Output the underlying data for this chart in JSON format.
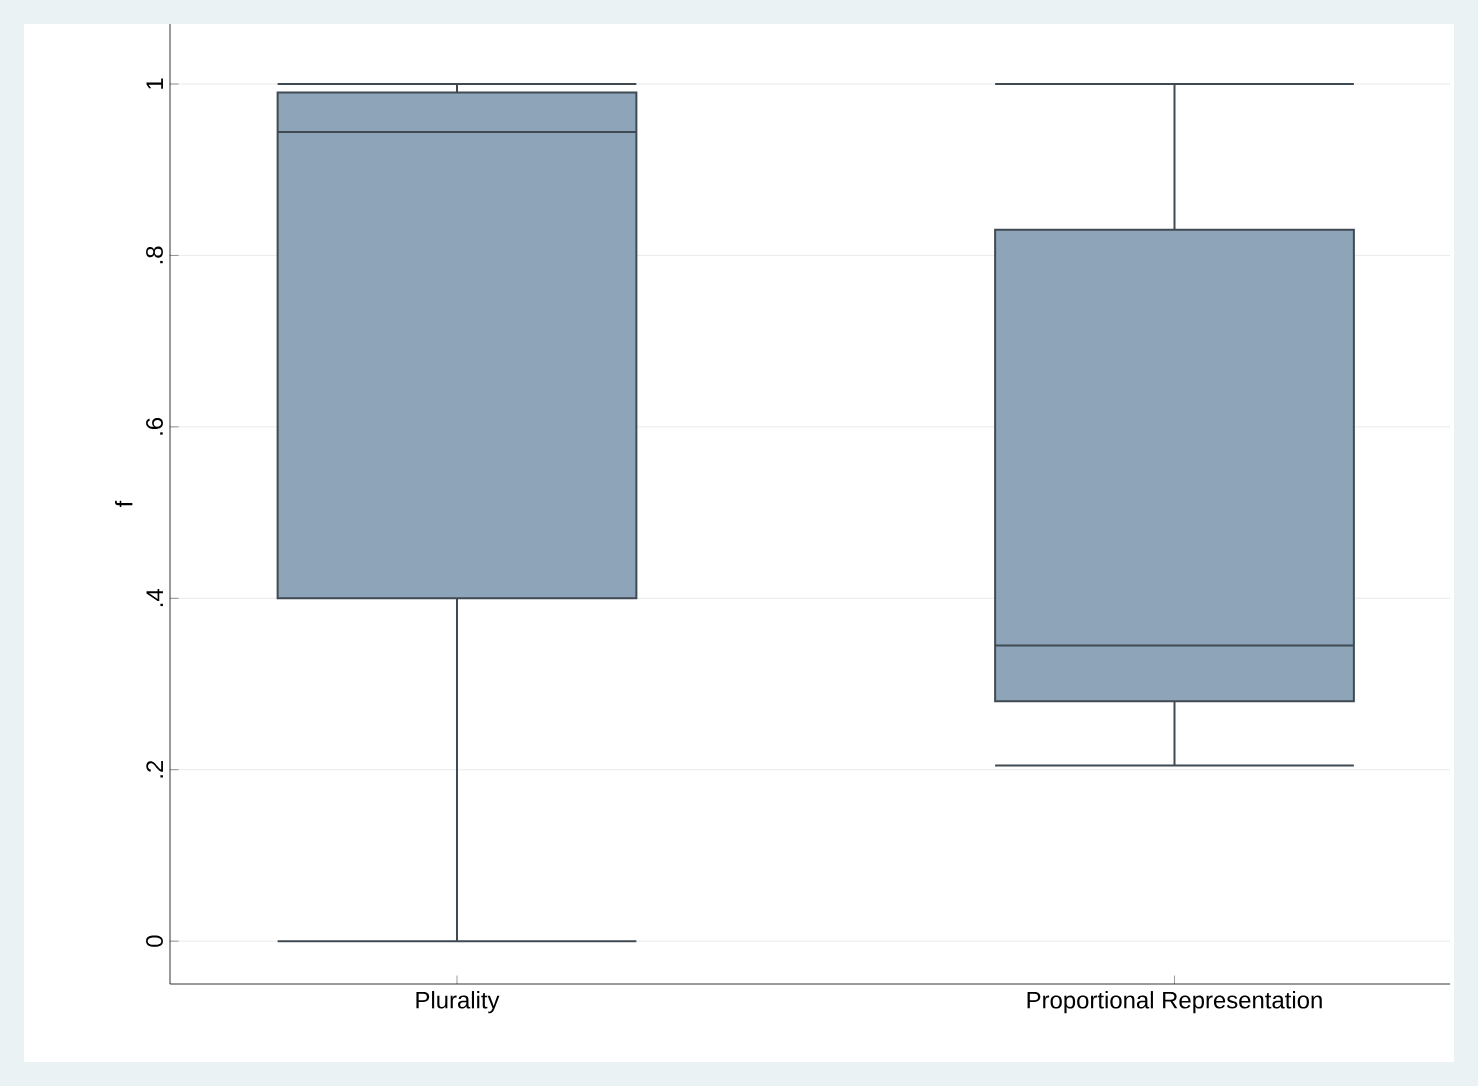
{
  "chart_data": {
    "type": "box",
    "ylabel": "f",
    "categories": [
      "Plurality",
      "Proportional Representation"
    ],
    "color": "#8ea4b8",
    "boxes": [
      {
        "low": 0,
        "q1": 0.4,
        "median": 0.944,
        "q3": 0.99,
        "high": 1
      },
      {
        "low": 0.205,
        "q1": 0.28,
        "median": 0.345,
        "q3": 0.83,
        "high": 1
      }
    ],
    "ylim": [
      -0.05,
      1.07
    ],
    "yticks": [
      0,
      {
        "value": 0.2,
        "label": ".2"
      },
      {
        "value": 0.4,
        "label": ".4"
      },
      {
        "value": 0.6,
        "label": ".6"
      },
      {
        "value": 0.8,
        "label": ".8"
      },
      1
    ],
    "grid": "y"
  }
}
